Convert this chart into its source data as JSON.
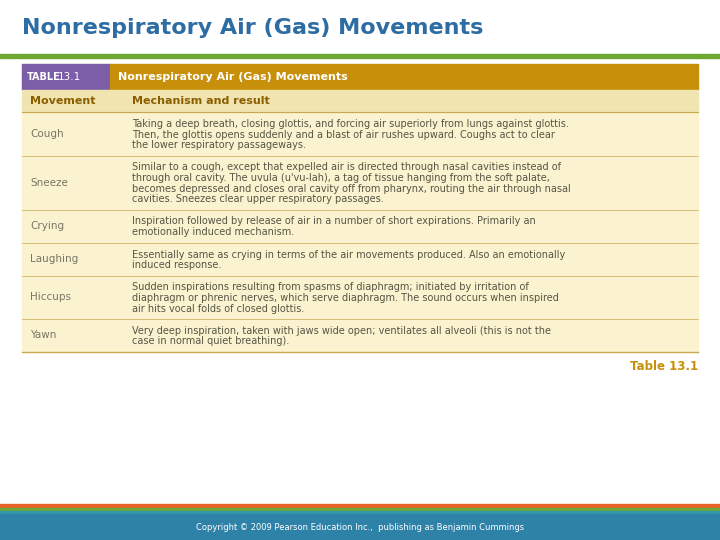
{
  "title": "Nonrespiratory Air (Gas) Movements",
  "title_color": "#2E6DA4",
  "title_fontsize": 16,
  "bg_color": "#FFFFFF",
  "table_header_bg_left": "#7B5EA7",
  "table_header_bg_right": "#C8900A",
  "table_subheader_bg": "#F0E4B0",
  "table_body_bg": "#FBF3D0",
  "header_text": "Nonrespiratory Air (Gas) Movements",
  "table_label": "TABLE",
  "table_number": "13.1",
  "col1_header": "Movement",
  "col2_header": "Mechanism and result",
  "header_col_color": "#8B5E00",
  "green_bar_color": "#6EA832",
  "footer_bar1": "#E8622A",
  "footer_bar2": "#6EA832",
  "footer_bar3": "#3498A8",
  "footer_bg": "#2E82A8",
  "footer_text": "Copyright © 2009 Pearson Education Inc.,  publishing as Benjamin Cummings",
  "footer_color": "#FFFFFF",
  "table13_label": "Table 13.1",
  "table13_color": "#C8900A",
  "separator_color": "#C8A850",
  "body_text_color": "#555544",
  "movement_text_color": "#777766",
  "rows": [
    {
      "movement": "Cough",
      "description": "Taking a deep breath, closing glottis, and forcing air superiorly from lungs against glottis.\nThen, the glottis opens suddenly and a blast of air rushes upward. Coughs act to clear\nthe lower respiratory passageways."
    },
    {
      "movement": "Sneeze",
      "description": "Similar to a cough, except that expelled air is directed through nasal cavities instead of\nthrough oral cavity. The uvula (u'vu-lah), a tag of tissue hanging from the soft palate,\nbecomes depressed and closes oral cavity off from pharynx, routing the air through nasal\ncavities. Sneezes clear upper respiratory passages."
    },
    {
      "movement": "Crying",
      "description": "Inspiration followed by release of air in a number of short expirations. Primarily an\nemotionally induced mechanism."
    },
    {
      "movement": "Laughing",
      "description": "Essentially same as crying in terms of the air movements produced. Also an emotionally\ninduced response."
    },
    {
      "movement": "Hiccups",
      "description": "Sudden inspirations resulting from spasms of diaphragm; initiated by irritation of\ndiaphragm or phrenic nerves, which serve diaphragm. The sound occurs when inspired\nair hits vocal folds of closed glottis."
    },
    {
      "movement": "Yawn",
      "description": "Very deep inspiration, taken with jaws wide open; ventilates all alveoli (this is not the\ncase in normal quiet breathing)."
    }
  ]
}
